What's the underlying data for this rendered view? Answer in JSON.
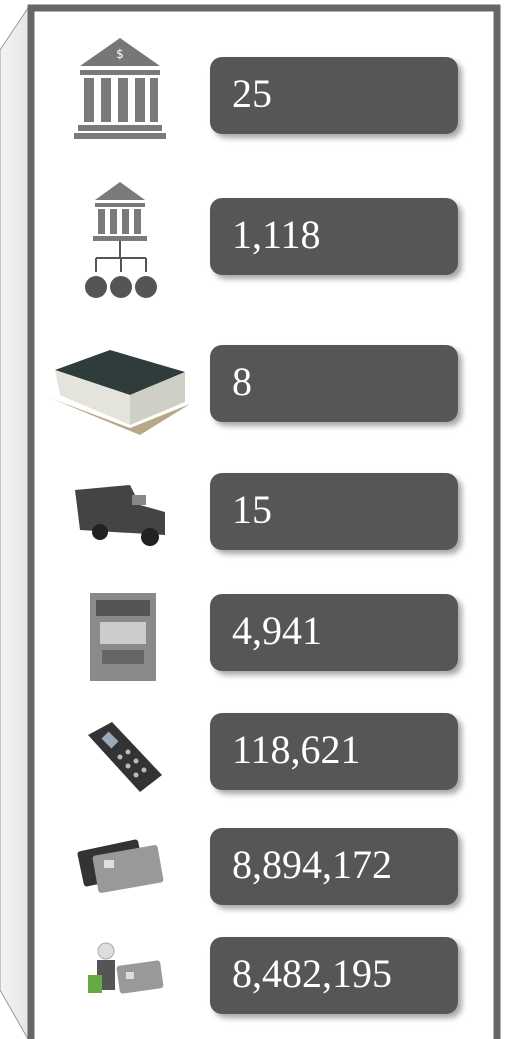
{
  "items": [
    "25",
    "1,118",
    "8",
    "15",
    "4,941",
    "118,621",
    "8,894,172",
    "8,482,195"
  ]
}
